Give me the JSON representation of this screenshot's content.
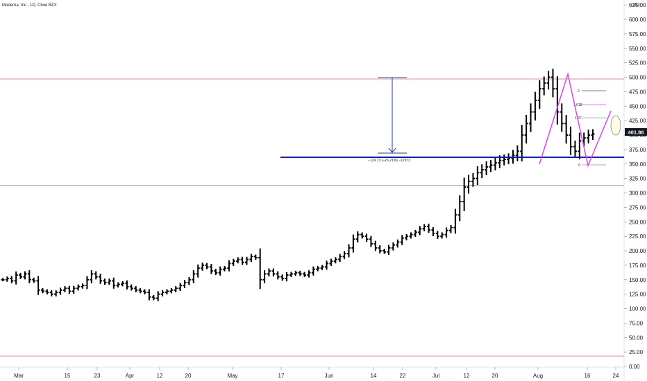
{
  "header": {
    "title": "Moderna, Inc., 1D, Cboe BZX"
  },
  "price_axis": {
    "currency": "USD"
  },
  "last_price": {
    "label": "401.86"
  },
  "measure_tool": {
    "label": "−129.73 (−26.21%) −12973"
  },
  "fib_levels": {
    "l2": "2",
    "l1618": "1.618",
    "l127": "1.27",
    "l0": "0"
  },
  "colors": {
    "bars": "#000000",
    "support_line": "#0a1ecc",
    "horizontal_lines": "#f28b82",
    "pattern": "#e040fb",
    "measure": "#1e3f8c",
    "fib_2": "#555555",
    "fib_1618": "#e040fb",
    "fib_127": "#64b5f6",
    "ellipse_fill": "#fffde7",
    "ellipse_stroke": "#888888"
  },
  "chart_data": {
    "type": "ohlc",
    "title": "Moderna, Inc., 1D, Cboe BZX",
    "ylabel": "USD",
    "ylim": [
      -5,
      625
    ],
    "yticks": [
      "0.00",
      "25.00",
      "50.00",
      "75.00",
      "100.00",
      "125.00",
      "150.00",
      "175.00",
      "200.00",
      "225.00",
      "250.00",
      "275.00",
      "300.00",
      "325.00",
      "350.00",
      "375.00",
      "400.00",
      "425.00",
      "450.00",
      "475.00",
      "500.00",
      "525.00",
      "550.00",
      "575.00",
      "600.00",
      "625.00"
    ],
    "xticks": [
      "Mar",
      "15",
      "23",
      "Apr",
      "12",
      "20",
      "May",
      "17",
      "Jun",
      "14",
      "22",
      "Jul",
      "12",
      "20",
      "Aug",
      "16",
      "24"
    ],
    "horizontal_lines": [
      497,
      313,
      18
    ],
    "support_line": 360,
    "series": [
      {
        "values": [
          150,
          152,
          148,
          158,
          155,
          160,
          150,
          148,
          132,
          130,
          128,
          125,
          128,
          132,
          135,
          130,
          135,
          138,
          140,
          150,
          160,
          155,
          148,
          145,
          148,
          140,
          142,
          144,
          138,
          135,
          132,
          130,
          128,
          120,
          118,
          125,
          128,
          130,
          132,
          135,
          140,
          145,
          150,
          160,
          170,
          175,
          172,
          165,
          162,
          168,
          170,
          178,
          182,
          185,
          180,
          185,
          190,
          188,
          150,
          160,
          165,
          160,
          155,
          152,
          158,
          160,
          162,
          160,
          158,
          162,
          168,
          170,
          172,
          178,
          182,
          185,
          190,
          195,
          205,
          220,
          228,
          225,
          220,
          212,
          205,
          200,
          198,
          205,
          210,
          215,
          222,
          225,
          228,
          232,
          238,
          242,
          236,
          230,
          225,
          228,
          235,
          240,
          262,
          285,
          310,
          320,
          325,
          335,
          340,
          345,
          348,
          352,
          356,
          358,
          360,
          365,
          372,
          400,
          420,
          440,
          460,
          480,
          490,
          500,
          480,
          440,
          420,
          400,
          380,
          372,
          390,
          395,
          400,
          401.86
        ]
      }
    ]
  }
}
